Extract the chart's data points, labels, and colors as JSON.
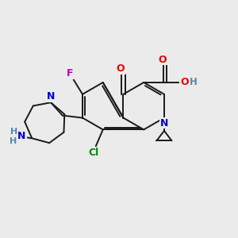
{
  "bg_color": "#ebebeb",
  "bond_color": "#1a1a1a",
  "N_color": "#0000cc",
  "O_color": "#ee0000",
  "F_color": "#bb00bb",
  "Cl_color": "#008800",
  "H_color": "#5588aa",
  "figsize": [
    3.0,
    3.0
  ],
  "dpi": 100,
  "xlim": [
    0,
    10
  ],
  "ylim": [
    0,
    10
  ]
}
